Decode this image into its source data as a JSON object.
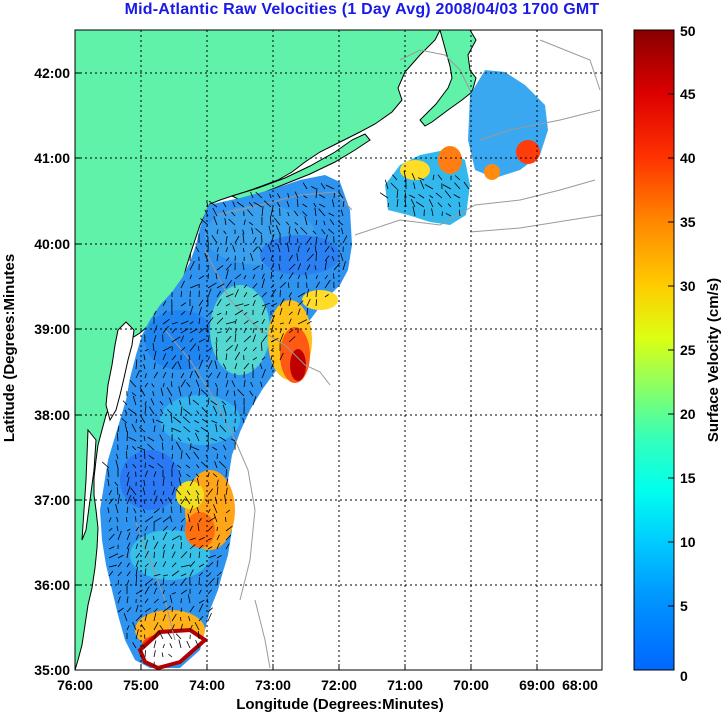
{
  "title": "Mid-Atlantic Raw Velocities (1 Day Avg) 2008/04/03 1700 GMT",
  "xlabel": "Longitude (Degrees:Minutes)",
  "ylabel": "Latitude (Degrees:Minutes",
  "colorbar_label": "Surface Velocity (cm/s)",
  "x_ticks": [
    "76:00",
    "75:00",
    "74:00",
    "73:00",
    "72:00",
    "71:00",
    "70:00",
    "69:00",
    "68:00"
  ],
  "y_ticks": [
    "35:00",
    "36:00",
    "37:00",
    "38:00",
    "39:00",
    "40:00",
    "41:00",
    "42:00"
  ],
  "colorbar_ticks": [
    "0",
    "5",
    "10",
    "15",
    "20",
    "25",
    "30",
    "35",
    "40",
    "45",
    "50"
  ],
  "map": {
    "lon_range": [
      -76,
      -68
    ],
    "lat_range": [
      35,
      42.5
    ],
    "velocity_range_cms": [
      0,
      50
    ],
    "land_color": "#5ff2a8",
    "colormap": "jet"
  }
}
